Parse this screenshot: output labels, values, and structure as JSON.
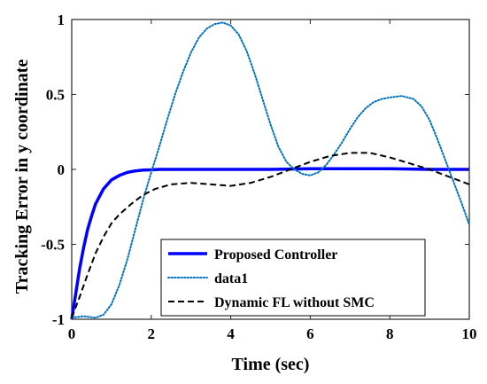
{
  "chart_data": {
    "type": "line",
    "xlabel": "Time (sec)",
    "ylabel": "Tracking Error in y coordinate",
    "xlim": [
      0,
      10
    ],
    "ylim": [
      -1,
      1
    ],
    "xticks": [
      0,
      2,
      4,
      6,
      8,
      10
    ],
    "yticks": [
      -1,
      -0.5,
      0,
      0.5,
      1
    ],
    "xtick_labels": [
      "0",
      "2",
      "4",
      "6",
      "8",
      "10"
    ],
    "ytick_labels": [
      "-1",
      "-0.5",
      "0",
      "0.5",
      "1"
    ],
    "grid": false,
    "legend_position": "bottom-right",
    "series": [
      {
        "name": "Proposed Controller",
        "color": "#0000ff",
        "style": "solid",
        "x": [
          0,
          0.1,
          0.2,
          0.3,
          0.4,
          0.5,
          0.6,
          0.8,
          1.0,
          1.2,
          1.4,
          1.6,
          1.8,
          2.0,
          2.2,
          2.5,
          3.0,
          4.0,
          5.0,
          6.0,
          7.0,
          8.0,
          9.0,
          10.0
        ],
        "y": [
          -1.0,
          -0.83,
          -0.66,
          -0.52,
          -0.4,
          -0.31,
          -0.23,
          -0.13,
          -0.07,
          -0.04,
          -0.02,
          -0.01,
          -0.005,
          -0.003,
          0.0,
          0.0,
          0.0,
          0.0,
          0.0,
          0.005,
          0.005,
          0.005,
          0.0,
          0.0
        ]
      },
      {
        "name": "data1",
        "color": "#0072bd",
        "style": "dotted",
        "x": [
          0,
          0.3,
          0.6,
          0.8,
          1.0,
          1.2,
          1.4,
          1.6,
          1.8,
          2.0,
          2.2,
          2.4,
          2.6,
          2.8,
          3.0,
          3.2,
          3.4,
          3.6,
          3.8,
          4.0,
          4.2,
          4.4,
          4.6,
          4.8,
          5.0,
          5.2,
          5.4,
          5.6,
          5.8,
          6.0,
          6.2,
          6.4,
          6.6,
          6.8,
          7.0,
          7.2,
          7.4,
          7.6,
          7.8,
          8.0,
          8.3,
          8.6,
          8.8,
          9.0,
          9.2,
          9.4,
          9.6,
          9.8,
          10.0
        ],
        "y": [
          -0.99,
          -0.98,
          -0.99,
          -0.97,
          -0.9,
          -0.77,
          -0.6,
          -0.4,
          -0.2,
          -0.02,
          0.15,
          0.33,
          0.5,
          0.65,
          0.78,
          0.88,
          0.94,
          0.97,
          0.98,
          0.96,
          0.9,
          0.79,
          0.64,
          0.47,
          0.3,
          0.15,
          0.05,
          0.0,
          -0.03,
          -0.04,
          -0.02,
          0.03,
          0.1,
          0.18,
          0.27,
          0.35,
          0.41,
          0.45,
          0.47,
          0.48,
          0.49,
          0.47,
          0.42,
          0.33,
          0.2,
          0.06,
          -0.08,
          -0.22,
          -0.37
        ]
      },
      {
        "name": "Dynamic FL without SMC",
        "color": "#000000",
        "style": "dashed",
        "x": [
          0,
          0.2,
          0.4,
          0.6,
          0.8,
          1.0,
          1.2,
          1.5,
          1.8,
          2.1,
          2.5,
          3.0,
          3.5,
          4.0,
          4.5,
          5.0,
          5.5,
          6.0,
          6.5,
          7.0,
          7.5,
          8.0,
          8.5,
          9.0,
          9.5,
          10.0
        ],
        "y": [
          -0.99,
          -0.85,
          -0.7,
          -0.56,
          -0.45,
          -0.36,
          -0.3,
          -0.23,
          -0.17,
          -0.13,
          -0.1,
          -0.09,
          -0.1,
          -0.11,
          -0.09,
          -0.05,
          0.0,
          0.05,
          0.09,
          0.11,
          0.11,
          0.08,
          0.04,
          0.0,
          -0.05,
          -0.1
        ]
      }
    ]
  }
}
